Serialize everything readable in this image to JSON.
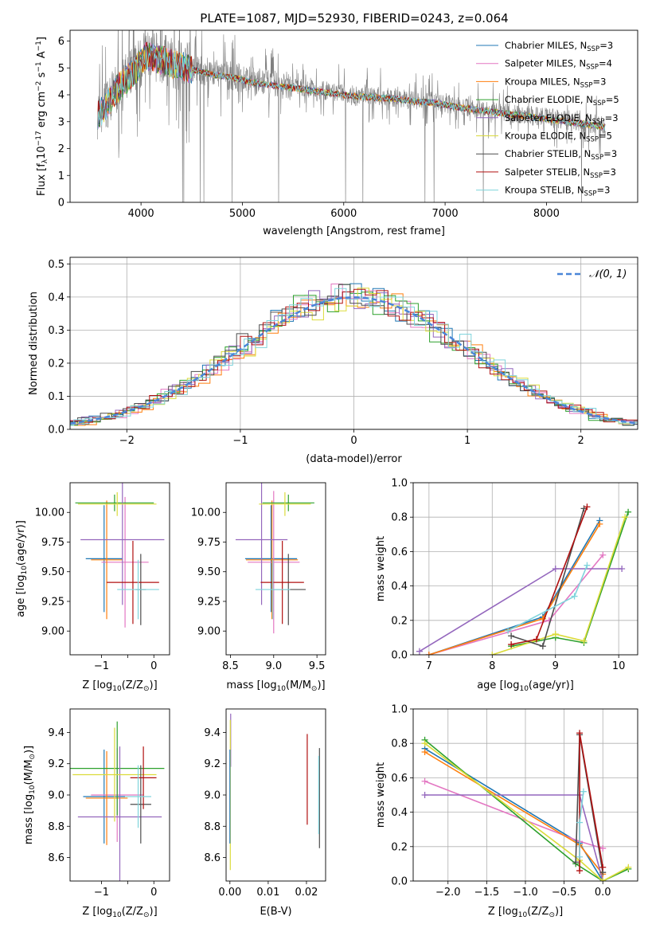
{
  "figure_title": "PLATE=1087, MJD=52930, FIBERID=0243, z=0.064",
  "colors": {
    "Chabrier MILES": "#1f77b4",
    "Salpeter MILES": "#e377c2",
    "Kroupa MILES": "#ff7f0e",
    "Chabrier ELODIE": "#2ca02c",
    "Salpeter ELODIE": "#9467bd",
    "Kroupa ELODIE": "#dbdb3a",
    "Chabrier STELIB": "#4d4d4d",
    "Salpeter STELIB": "#b01010",
    "Kroupa STELIB": "#7fd4dc",
    "data": "#808080",
    "normal": "#4a86d8"
  },
  "chart_data": [
    {
      "id": "spectrum",
      "type": "line",
      "title": "PLATE=1087, MJD=52930, FIBERID=0243, z=0.064",
      "xlabel": "wavelength [Angstrom, rest frame]",
      "ylabel_parts": [
        "Flux [f",
        "λ",
        "10",
        "−17",
        " erg cm",
        "−2",
        " s",
        "−1",
        " A",
        "−1",
        "]"
      ],
      "xlim": [
        3300,
        8900
      ],
      "ylim": [
        0,
        6.4
      ],
      "xticks": [
        4000,
        5000,
        6000,
        7000,
        8000
      ],
      "yticks": [
        0,
        1,
        2,
        3,
        4,
        5,
        6
      ],
      "continuum_points": [
        [
          3570,
          3.3
        ],
        [
          3650,
          3.6
        ],
        [
          3750,
          4.2
        ],
        [
          3850,
          4.6
        ],
        [
          3950,
          5.0
        ],
        [
          4050,
          5.5
        ],
        [
          4150,
          5.4
        ],
        [
          4300,
          5.2
        ],
        [
          4500,
          5.0
        ],
        [
          4700,
          4.8
        ],
        [
          4900,
          4.7
        ],
        [
          5100,
          4.5
        ],
        [
          5300,
          4.4
        ],
        [
          5500,
          4.3
        ],
        [
          5700,
          4.2
        ],
        [
          5900,
          4.1
        ],
        [
          6100,
          4.0
        ],
        [
          6300,
          3.95
        ],
        [
          6500,
          3.9
        ],
        [
          6700,
          3.8
        ],
        [
          6900,
          3.75
        ],
        [
          7100,
          3.6
        ],
        [
          7300,
          3.5
        ],
        [
          7500,
          3.4
        ],
        [
          7700,
          3.3
        ],
        [
          7900,
          3.2
        ],
        [
          8100,
          3.1
        ],
        [
          8300,
          3.0
        ],
        [
          8500,
          2.9
        ],
        [
          8580,
          2.85
        ]
      ],
      "legend": [
        {
          "label": "Chabrier MILES",
          "nssp": "3"
        },
        {
          "label": "Salpeter MILES",
          "nssp": "4"
        },
        {
          "label": "Kroupa MILES",
          "nssp": "3"
        },
        {
          "label": "Chabrier ELODIE",
          "nssp": "5"
        },
        {
          "label": "Salpeter ELODIE",
          "nssp": "3"
        },
        {
          "label": "Kroupa ELODIE",
          "nssp": "5"
        },
        {
          "label": "Chabrier STELIB",
          "nssp": "3"
        },
        {
          "label": "Salpeter STELIB",
          "nssp": "3"
        },
        {
          "label": "Kroupa STELIB",
          "nssp": "3"
        }
      ],
      "nssp_prefix": "N",
      "nssp_sub": "SSP",
      "nssp_eq": "="
    },
    {
      "id": "residuals",
      "type": "step",
      "xlabel": "(data-model)/error",
      "ylabel": "Normed distribution",
      "xlim": [
        -2.5,
        2.5
      ],
      "ylim": [
        0,
        0.52
      ],
      "xticks": [
        -2,
        -1,
        0,
        1,
        2
      ],
      "xtick_labels": [
        "−2",
        "−1",
        "0",
        "1",
        "2"
      ],
      "yticks": [
        0,
        0.1,
        0.2,
        0.3,
        0.4,
        0.5
      ],
      "ytick_labels": [
        "0.0",
        "0.1",
        "0.2",
        "0.3",
        "0.4",
        "0.5"
      ],
      "bin_width": 0.1,
      "normal_legend_main": "𝒩(0, 1)",
      "grid": true
    },
    {
      "id": "age-vs-Z",
      "type": "errorbar",
      "xlabel_parts": [
        "Z [log",
        "10",
        "(Z/Z",
        "⊙",
        ")]"
      ],
      "ylabel_parts": [
        "age  [log",
        "10",
        "(age/yr)]"
      ],
      "xlim": [
        -1.6,
        0.3
      ],
      "ylim": [
        8.8,
        10.25
      ],
      "xticks": [
        -1,
        -0.5,
        0
      ],
      "xtick_labels": [
        "−1",
        "",
        "0"
      ],
      "yticks": [
        9.0,
        9.25,
        9.5,
        9.75,
        10.0
      ],
      "ytick_labels": [
        "9.00",
        "9.25",
        "9.50",
        "9.75",
        "10.00"
      ],
      "points": [
        {
          "model": "Chabrier MILES",
          "x": -0.95,
          "y": 9.61,
          "xerr": 0.35,
          "yerr": 0.45
        },
        {
          "model": "Salpeter MILES",
          "x": -0.55,
          "y": 9.58,
          "xerr": 0.45,
          "yerr": 0.55
        },
        {
          "model": "Kroupa MILES",
          "x": -0.9,
          "y": 9.6,
          "xerr": 0.3,
          "yerr": 0.5
        },
        {
          "model": "Chabrier ELODIE",
          "x": -0.75,
          "y": 10.08,
          "xerr": 0.75,
          "yerr": 0.07
        },
        {
          "model": "Salpeter ELODIE",
          "x": -0.6,
          "y": 9.77,
          "xerr": 0.8,
          "yerr": 0.55
        },
        {
          "model": "Kroupa ELODIE",
          "x": -0.7,
          "y": 10.07,
          "xerr": 0.75,
          "yerr": 0.1
        },
        {
          "model": "Chabrier STELIB",
          "x": -0.25,
          "y": 9.35,
          "xerr": 0.1,
          "yerr": 0.3
        },
        {
          "model": "Salpeter STELIB",
          "x": -0.4,
          "y": 9.41,
          "xerr": 0.5,
          "yerr": 0.35
        },
        {
          "model": "Kroupa STELIB",
          "x": -0.3,
          "y": 9.35,
          "xerr": 0.4,
          "yerr": 0.25
        }
      ]
    },
    {
      "id": "age-vs-mass",
      "type": "errorbar",
      "xlabel_parts": [
        "mass [log",
        "10",
        "(M/M",
        "⊙",
        ")]"
      ],
      "xlim": [
        8.45,
        9.6
      ],
      "ylim": [
        8.8,
        10.25
      ],
      "xticks": [
        8.5,
        9.0,
        9.5
      ],
      "xtick_labels": [
        "8.5",
        "9.0",
        "9.5"
      ],
      "yticks": [
        9.0,
        9.25,
        9.5,
        9.75,
        10.0
      ],
      "ytick_labels": [
        "9.00",
        "9.25",
        "9.50",
        "9.75",
        "10.00"
      ],
      "points": [
        {
          "model": "Chabrier MILES",
          "x": 8.97,
          "y": 9.61,
          "xerr": 0.3,
          "yerr": 0.45
        },
        {
          "model": "Salpeter MILES",
          "x": 9.0,
          "y": 9.58,
          "xerr": 0.3,
          "yerr": 0.6
        },
        {
          "model": "Kroupa MILES",
          "x": 8.98,
          "y": 9.6,
          "xerr": 0.3,
          "yerr": 0.5
        },
        {
          "model": "Chabrier ELODIE",
          "x": 9.17,
          "y": 10.08,
          "xerr": 0.3,
          "yerr": 0.07
        },
        {
          "model": "Salpeter ELODIE",
          "x": 8.86,
          "y": 9.77,
          "xerr": 0.3,
          "yerr": 0.55
        },
        {
          "model": "Kroupa ELODIE",
          "x": 9.13,
          "y": 10.07,
          "xerr": 0.3,
          "yerr": 0.1
        },
        {
          "model": "Chabrier STELIB",
          "x": 9.17,
          "y": 9.35,
          "xerr": 0.2,
          "yerr": 0.3
        },
        {
          "model": "Salpeter STELIB",
          "x": 9.1,
          "y": 9.41,
          "xerr": 0.25,
          "yerr": 0.35
        },
        {
          "model": "Kroupa STELIB",
          "x": 8.99,
          "y": 9.35,
          "xerr": 0.2,
          "yerr": 0.25
        }
      ]
    },
    {
      "id": "massweight-vs-age",
      "type": "line",
      "xlabel_parts": [
        "age  [log",
        "10",
        "(age/yr)]"
      ],
      "ylabel": "mass weight",
      "xlim": [
        6.75,
        10.3
      ],
      "ylim": [
        0,
        1.0
      ],
      "xticks": [
        7,
        8,
        9,
        10
      ],
      "xtick_labels": [
        "7",
        "8",
        "9",
        "10"
      ],
      "yticks": [
        0,
        0.2,
        0.4,
        0.6,
        0.8,
        1.0
      ],
      "ytick_labels": [
        "0.0",
        "0.2",
        "0.4",
        "0.6",
        "0.8",
        "1.0"
      ],
      "grid": true,
      "series": [
        {
          "model": "Chabrier MILES",
          "x": [
            7.0,
            8.8,
            9.7
          ],
          "y": [
            0.0,
            0.22,
            0.78
          ]
        },
        {
          "model": "Salpeter MILES",
          "x": [
            7.0,
            8.9,
            9.75
          ],
          "y": [
            0.0,
            0.2,
            0.58
          ]
        },
        {
          "model": "Kroupa MILES",
          "x": [
            7.0,
            8.8,
            9.7
          ],
          "y": [
            0.0,
            0.21,
            0.76
          ]
        },
        {
          "model": "Chabrier ELODIE",
          "x": [
            8.3,
            9.0,
            9.45,
            10.15
          ],
          "y": [
            0.05,
            0.1,
            0.07,
            0.83
          ]
        },
        {
          "model": "Salpeter ELODIE",
          "x": [
            6.85,
            9.0,
            10.05
          ],
          "y": [
            0.02,
            0.5,
            0.5
          ]
        },
        {
          "model": "Kroupa ELODIE",
          "x": [
            8.0,
            9.0,
            9.45,
            10.1
          ],
          "y": [
            0.0,
            0.12,
            0.08,
            0.8
          ]
        },
        {
          "model": "Chabrier STELIB",
          "x": [
            8.3,
            8.8,
            9.45
          ],
          "y": [
            0.11,
            0.05,
            0.85
          ]
        },
        {
          "model": "Salpeter STELIB",
          "x": [
            8.3,
            8.7,
            9.5
          ],
          "y": [
            0.06,
            0.09,
            0.86
          ]
        },
        {
          "model": "Kroupa STELIB",
          "x": [
            8.25,
            9.3,
            9.5
          ],
          "y": [
            0.14,
            0.34,
            0.52
          ]
        }
      ]
    },
    {
      "id": "mass-vs-Z",
      "type": "errorbar",
      "xlabel_parts": [
        "Z [log",
        "10",
        "(Z/Z",
        "⊙",
        ")]"
      ],
      "ylabel_parts": [
        "mass [log",
        "10",
        "(M/M",
        "⊙",
        ")]"
      ],
      "xlim": [
        -1.6,
        0.3
      ],
      "ylim": [
        8.45,
        9.55
      ],
      "xticks": [
        -1,
        -0.5,
        0
      ],
      "xtick_labels": [
        "−1",
        "",
        "0"
      ],
      "yticks": [
        8.6,
        8.8,
        9.0,
        9.2,
        9.4
      ],
      "ytick_labels": [
        "8.6",
        "8.8",
        "9.0",
        "9.2",
        "9.4"
      ],
      "points": [
        {
          "model": "Chabrier MILES",
          "x": -0.95,
          "y": 8.99,
          "xerr": 0.4,
          "yerr": 0.3
        },
        {
          "model": "Salpeter MILES",
          "x": -0.7,
          "y": 9.0,
          "xerr": 0.5,
          "yerr": 0.3
        },
        {
          "model": "Kroupa MILES",
          "x": -0.9,
          "y": 8.98,
          "xerr": 0.4,
          "yerr": 0.3
        },
        {
          "model": "Chabrier ELODIE",
          "x": -0.7,
          "y": 9.17,
          "xerr": 0.9,
          "yerr": 0.3
        },
        {
          "model": "Salpeter ELODIE",
          "x": -0.65,
          "y": 8.86,
          "xerr": 0.8,
          "yerr": 0.45
        },
        {
          "model": "Kroupa ELODIE",
          "x": -0.75,
          "y": 9.13,
          "xerr": 0.8,
          "yerr": 0.3
        },
        {
          "model": "Chabrier STELIB",
          "x": -0.25,
          "y": 8.94,
          "xerr": 0.2,
          "yerr": 0.25
        },
        {
          "model": "Salpeter STELIB",
          "x": -0.2,
          "y": 9.11,
          "xerr": 0.25,
          "yerr": 0.2
        },
        {
          "model": "Kroupa STELIB",
          "x": -0.3,
          "y": 8.99,
          "xerr": 0.25,
          "yerr": 0.2
        }
      ]
    },
    {
      "id": "mass-vs-ebv",
      "type": "errorbar",
      "xlabel": "E(B-V)",
      "xlim": [
        -0.001,
        0.025
      ],
      "ylim": [
        8.45,
        9.55
      ],
      "xticks": [
        0.0,
        0.01,
        0.02
      ],
      "xtick_labels": [
        "0.00",
        "0.01",
        "0.02"
      ],
      "yticks": [
        8.6,
        8.8,
        9.0,
        9.2,
        9.4
      ],
      "ytick_labels": [
        "8.6",
        "8.8",
        "9.0",
        "9.2",
        "9.4"
      ],
      "points": [
        {
          "model": "Salpeter ELODIE",
          "x": 0.0002,
          "y": 9.35,
          "yerr": 0.17
        },
        {
          "model": "Kroupa ELODIE",
          "x": 0.0001,
          "y": 9.0,
          "yerr": 0.48
        },
        {
          "model": "Chabrier MILES",
          "x": 0.0,
          "y": 8.99,
          "yerr": 0.3
        },
        {
          "model": "Salpeter STELIB",
          "x": 0.0202,
          "y": 9.1,
          "yerr": 0.29
        },
        {
          "model": "Chabrier STELIB",
          "x": 0.0234,
          "y": 8.98,
          "yerr": 0.32
        },
        {
          "model": "Kroupa STELIB",
          "x": 0.0232,
          "y": 9.0,
          "yerr": 0.25
        }
      ]
    },
    {
      "id": "massweight-vs-Z",
      "type": "line",
      "xlabel_parts": [
        "Z [log",
        "10",
        "(Z/Z",
        "⊙",
        ")]"
      ],
      "ylabel": "mass weight",
      "xlim": [
        -2.45,
        0.45
      ],
      "ylim": [
        0,
        1.0
      ],
      "xticks": [
        -2.0,
        -1.5,
        -1.0,
        -0.5,
        0.0
      ],
      "xtick_labels": [
        "−2.0",
        "−1.5",
        "−1.0",
        "−0.5",
        "0.0"
      ],
      "yticks": [
        0,
        0.2,
        0.4,
        0.6,
        0.8,
        1.0
      ],
      "ytick_labels": [
        "0.0",
        "0.2",
        "0.4",
        "0.6",
        "0.8",
        "1.0"
      ],
      "grid": true,
      "series": [
        {
          "model": "Chabrier MILES",
          "x": [
            -2.3,
            -0.3,
            0.0
          ],
          "y": [
            0.77,
            0.22,
            0.0
          ]
        },
        {
          "model": "Salpeter MILES",
          "x": [
            -2.3,
            -0.3,
            0.0
          ],
          "y": [
            0.58,
            0.23,
            0.19
          ]
        },
        {
          "model": "Kroupa MILES",
          "x": [
            -2.3,
            -0.3,
            0.0
          ],
          "y": [
            0.75,
            0.21,
            0.04
          ]
        },
        {
          "model": "Chabrier ELODIE",
          "x": [
            -2.3,
            -0.35,
            0.0,
            0.33
          ],
          "y": [
            0.82,
            0.1,
            0.0,
            0.07
          ]
        },
        {
          "model": "Salpeter ELODIE",
          "x": [
            -2.3,
            -0.3,
            0.0
          ],
          "y": [
            0.5,
            0.5,
            0.0
          ]
        },
        {
          "model": "Kroupa ELODIE",
          "x": [
            -2.3,
            -0.3,
            0.0,
            0.33
          ],
          "y": [
            0.8,
            0.12,
            0.0,
            0.08
          ]
        },
        {
          "model": "Chabrier STELIB",
          "x": [
            -0.35,
            -0.3,
            0.0
          ],
          "y": [
            0.11,
            0.85,
            0.05
          ]
        },
        {
          "model": "Salpeter STELIB",
          "x": [
            -0.3,
            -0.3,
            0.0
          ],
          "y": [
            0.06,
            0.86,
            0.08
          ]
        },
        {
          "model": "Kroupa STELIB",
          "x": [
            -0.3,
            -0.3,
            -0.25
          ],
          "y": [
            0.14,
            0.34,
            0.52
          ]
        }
      ]
    }
  ]
}
